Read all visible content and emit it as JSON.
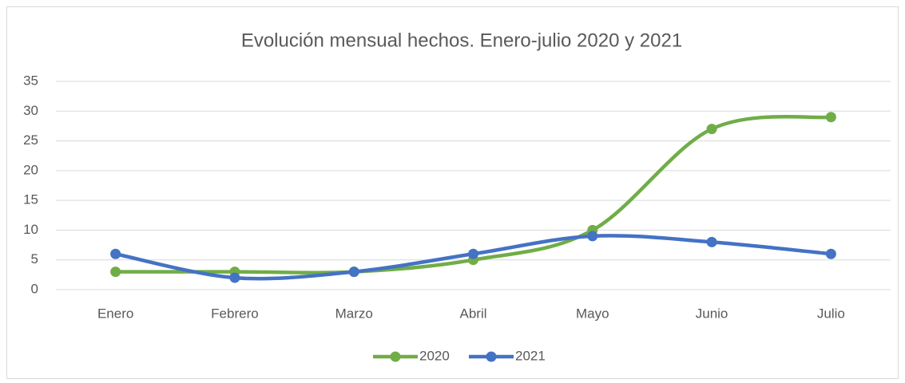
{
  "chart_data": {
    "type": "line",
    "title": "Evolución mensual hechos. Enero-julio 2020 y 2021",
    "categories": [
      "Enero",
      "Febrero",
      "Marzo",
      "Abril",
      "Mayo",
      "Junio",
      "Julio"
    ],
    "series": [
      {
        "name": "2020",
        "color": "#70ad47",
        "values": [
          3,
          3,
          3,
          5,
          10,
          27,
          29
        ]
      },
      {
        "name": "2021",
        "color": "#4472c4",
        "values": [
          6,
          2,
          3,
          6,
          9,
          8,
          6
        ]
      }
    ],
    "ylim": [
      0,
      35
    ],
    "yticks": [
      0,
      5,
      10,
      15,
      20,
      25,
      30,
      35
    ],
    "grid": true,
    "smooth": true,
    "legend": "bottom"
  }
}
